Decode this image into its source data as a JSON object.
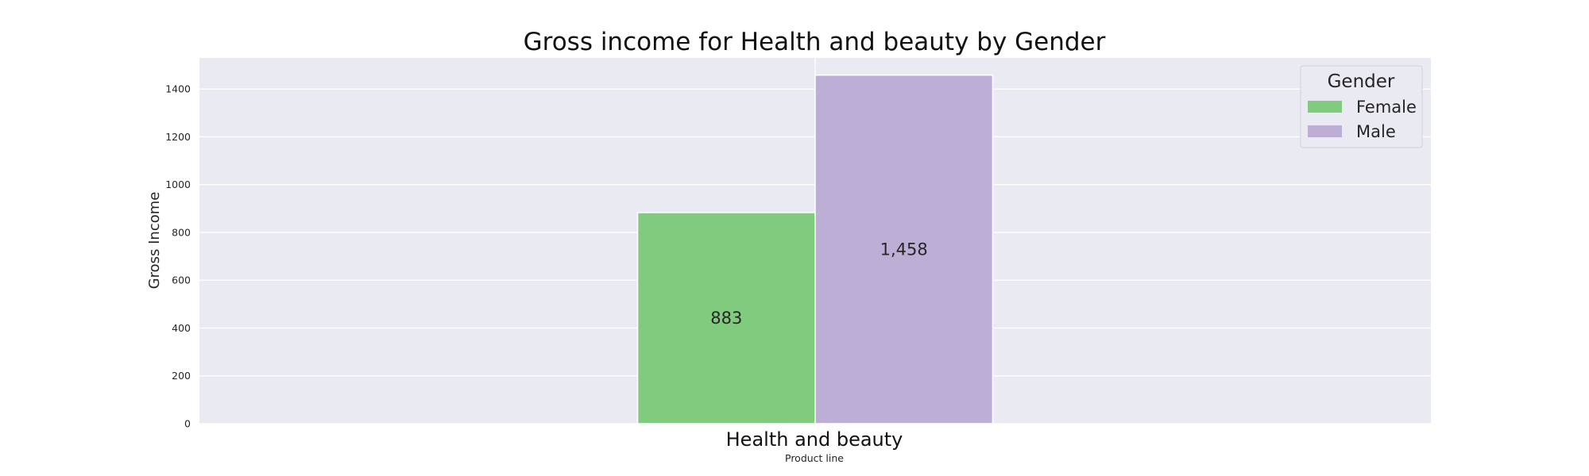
{
  "chart_data": {
    "type": "bar",
    "title": "Gross income for Health and beauty by Gender",
    "xlabel": "Product line",
    "ylabel": "Gross Income",
    "categories": [
      "Health and beauty"
    ],
    "series": [
      {
        "name": "Female",
        "values": [
          883
        ],
        "value_label": "883",
        "color": "#80cb7d"
      },
      {
        "name": "Male",
        "values": [
          1458
        ],
        "value_label": "1,458",
        "color": "#bdaed5"
      }
    ],
    "ylim": [
      0,
      1530
    ],
    "yticks": [
      0,
      200,
      400,
      600,
      800,
      1000,
      1200,
      1400
    ],
    "grid": true,
    "legend": {
      "title": "Gender",
      "placement": "top-right"
    },
    "colors": {
      "plot_background": "#eaeaf2",
      "grid": "#ffffff"
    }
  }
}
